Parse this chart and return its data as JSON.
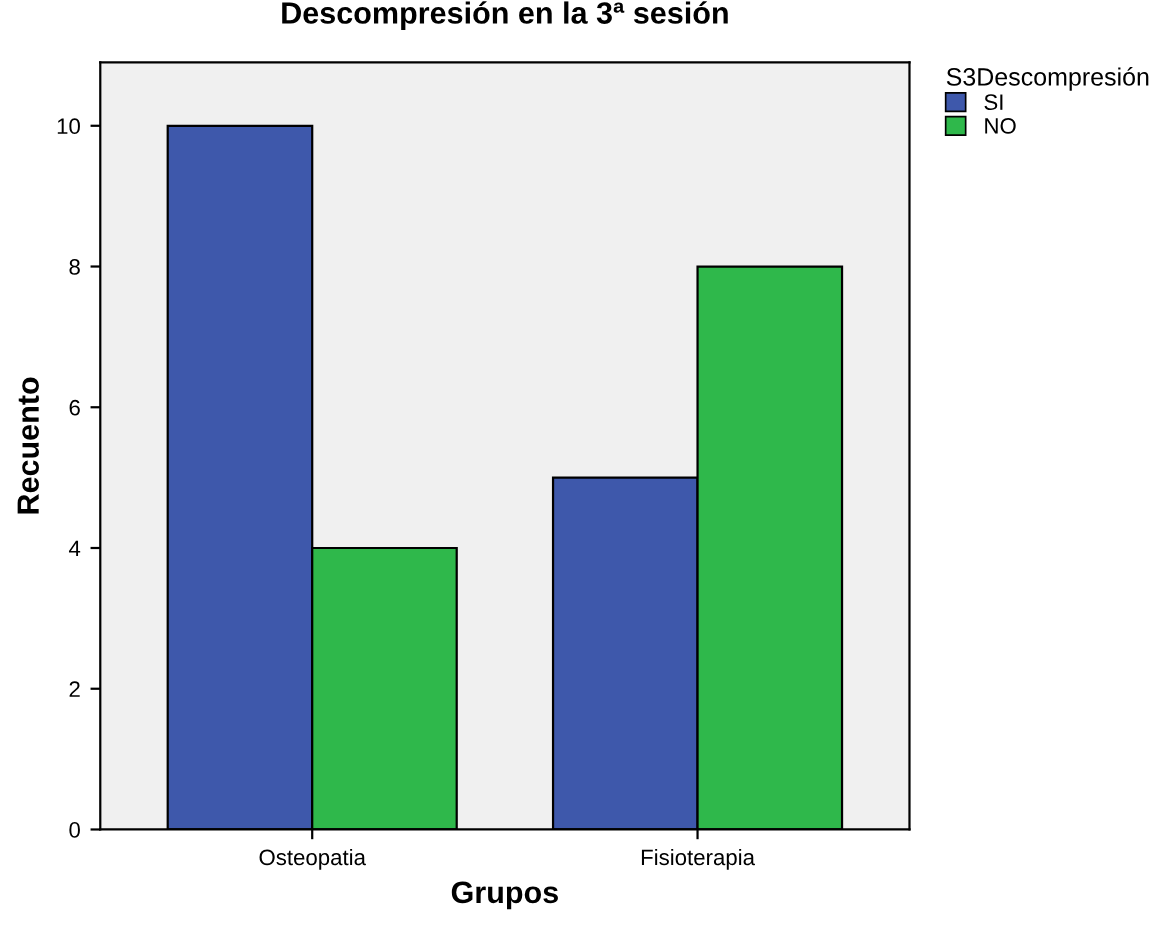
{
  "chart_data": {
    "type": "bar",
    "title": "Descompresión en la 3ª sesión",
    "xlabel": "Grupos",
    "ylabel": "Recuento",
    "legend_title": "S3Descompresión",
    "categories": [
      "Osteopatia",
      "Fisioterapia"
    ],
    "series": [
      {
        "name": "SI",
        "color": "#3e58ab",
        "values": [
          10,
          5
        ]
      },
      {
        "name": "NO",
        "color": "#2fb84b",
        "values": [
          4,
          8
        ]
      }
    ],
    "ylim": [
      0,
      10.9
    ],
    "yticks": [
      0,
      2,
      4,
      6,
      8,
      10
    ],
    "grid": false,
    "legend": "top right"
  }
}
